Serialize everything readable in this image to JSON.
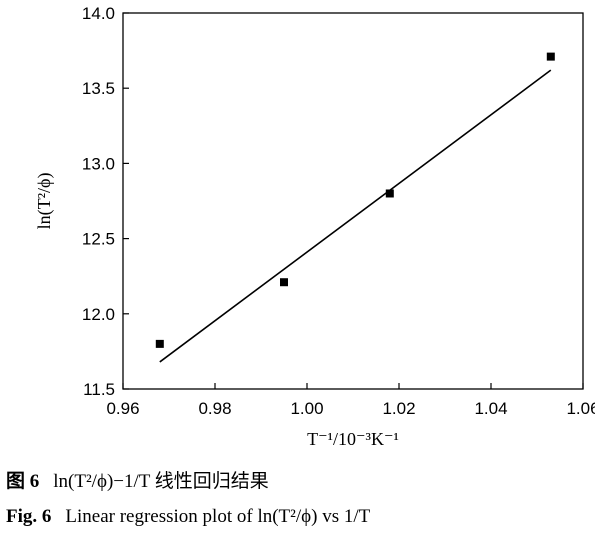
{
  "chart_data": {
    "type": "scatter",
    "title": "",
    "xlabel": "T⁻¹/10⁻³K⁻¹",
    "ylabel": "ln(T²/ϕ)",
    "xlim": [
      0.96,
      1.06
    ],
    "ylim": [
      11.5,
      14.0
    ],
    "xticks": [
      0.96,
      0.98,
      1.0,
      1.02,
      1.04,
      1.06
    ],
    "xtick_labels": [
      "0.96",
      "0.98",
      "1.00",
      "1.02",
      "1.04",
      "1.06"
    ],
    "yticks": [
      11.5,
      12.0,
      12.5,
      13.0,
      13.5,
      14.0
    ],
    "ytick_labels": [
      "11.5",
      "12.0",
      "12.5",
      "13.0",
      "13.5",
      "14.0"
    ],
    "grid": false,
    "points": [
      {
        "x": 0.968,
        "y": 11.8
      },
      {
        "x": 0.995,
        "y": 12.21
      },
      {
        "x": 1.018,
        "y": 12.8
      },
      {
        "x": 1.053,
        "y": 13.71
      }
    ],
    "fit_line": {
      "x": [
        0.968,
        1.053
      ],
      "y": [
        11.68,
        13.62
      ]
    }
  },
  "caption_cn": {
    "label": "图 6",
    "text": "ln(T²/ϕ)−1/T 线性回归结果"
  },
  "caption_en": {
    "label": "Fig. 6",
    "text": "Linear regression plot of ln(T²/ϕ) vs 1/T"
  }
}
